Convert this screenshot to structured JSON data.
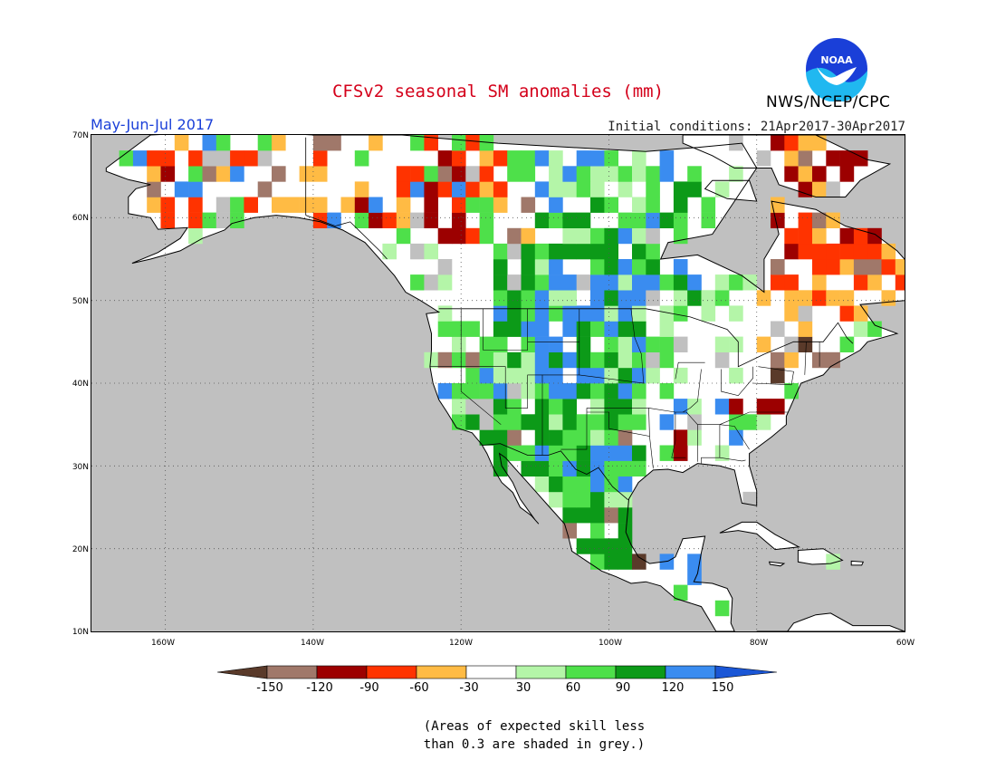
{
  "title": "CFSv2 seasonal SM anomalies (mm)",
  "season": "May-Jun-Jul 2017",
  "initial_conditions": "Initial conditions: 21Apr2017-30Apr2017",
  "agency": "NWS/NCEP/CPC",
  "logo_text": "NOAA",
  "lat_labels": [
    "70N",
    "60N",
    "50N",
    "40N",
    "30N",
    "20N",
    "10N"
  ],
  "lon_labels": [
    "160W",
    "140W",
    "120W",
    "100W",
    "80W",
    "60W"
  ],
  "colorbar": {
    "labels": [
      "-150",
      "-120",
      "-90",
      "-60",
      "-30",
      "30",
      "60",
      "90",
      "120",
      "150"
    ],
    "colors": [
      "#5a3a2a",
      "#a0786a",
      "#9c0000",
      "#ff3300",
      "#ffbb44",
      "#ffffff",
      "#b4f5a8",
      "#4ee04a",
      "#0c9a18",
      "#3a8cf0",
      "#1a56d6"
    ]
  },
  "note_line1": "(Areas of expected skill less",
  "note_line2": "than 0.3 are shaded in grey.)",
  "colors": {
    "grey_mask": "#c0c0c0",
    "title_red": "#d4001a",
    "season_blue": "#1a3fd8"
  }
}
